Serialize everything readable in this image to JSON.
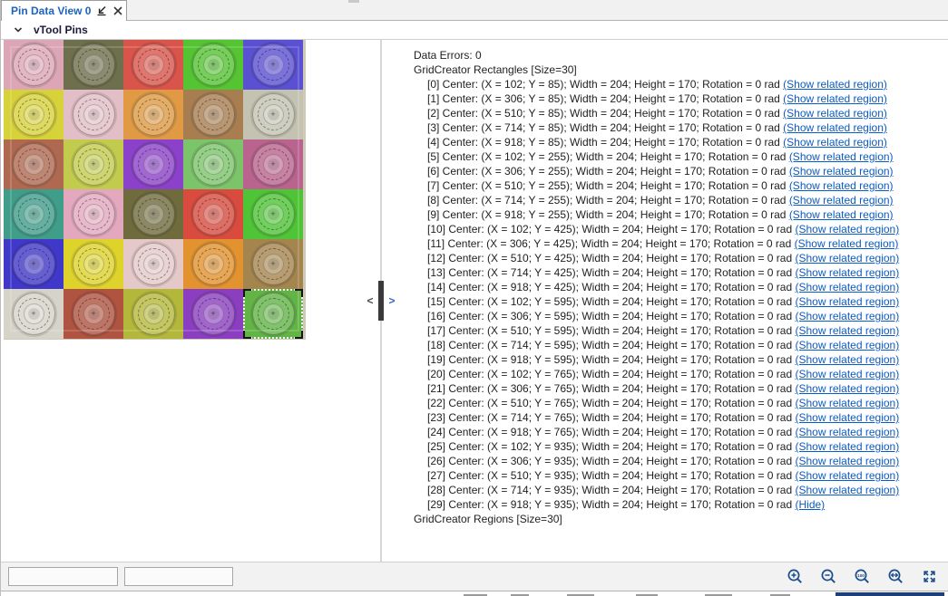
{
  "tab": {
    "title": "Pin Data View 0"
  },
  "header": {
    "title": "vTool Pins"
  },
  "viewer": {
    "cap_mark": "+",
    "selected_index": 29,
    "cell_colors": [
      "#dca6b6",
      "#6e6f4c",
      "#d9544a",
      "#55c433",
      "#5a50d2",
      "#d7d13a",
      "#e2bec6",
      "#df9a43",
      "#a87e50",
      "#c4c3b2",
      "#b06951",
      "#c2cb4e",
      "#8b41c9",
      "#7cc46a",
      "#b9638e",
      "#3f9d8a",
      "#e3a8bd",
      "#6f6b3c",
      "#d84b3e",
      "#4ec436",
      "#4038c8",
      "#ded32a",
      "#e5c9c9",
      "#e2922e",
      "#a5854e",
      "#d6d3c8",
      "#b05340",
      "#b4b83a",
      "#8b3fc0",
      "#62b446"
    ]
  },
  "splitter": {
    "left_glyph": "<",
    "right_glyph": ">"
  },
  "panel": {
    "data_errors": "Data Errors: 0",
    "rectangles_header": "GridCreator Rectangles [Size=30]",
    "regions_header": "GridCreator Regions [Size=30]",
    "entries": [
      {
        "label": "[0] Center: (X = 102; Y = 85); Width = 204; Height = 170; Rotation = 0 rad",
        "link": "Show related region"
      },
      {
        "label": "[1] Center: (X = 306; Y = 85); Width = 204; Height = 170; Rotation = 0 rad",
        "link": "Show related region"
      },
      {
        "label": "[2] Center: (X = 510; Y = 85); Width = 204; Height = 170; Rotation = 0 rad",
        "link": "Show related region"
      },
      {
        "label": "[3] Center: (X = 714; Y = 85); Width = 204; Height = 170; Rotation = 0 rad",
        "link": "Show related region"
      },
      {
        "label": "[4] Center: (X = 918; Y = 85); Width = 204; Height = 170; Rotation = 0 rad",
        "link": "Show related region"
      },
      {
        "label": "[5] Center: (X = 102; Y = 255); Width = 204; Height = 170; Rotation = 0 rad",
        "link": "Show related region"
      },
      {
        "label": "[6] Center: (X = 306; Y = 255); Width = 204; Height = 170; Rotation = 0 rad",
        "link": "Show related region"
      },
      {
        "label": "[7] Center: (X = 510; Y = 255); Width = 204; Height = 170; Rotation = 0 rad",
        "link": "Show related region"
      },
      {
        "label": "[8] Center: (X = 714; Y = 255); Width = 204; Height = 170; Rotation = 0 rad",
        "link": "Show related region"
      },
      {
        "label": "[9] Center: (X = 918; Y = 255); Width = 204; Height = 170; Rotation = 0 rad",
        "link": "Show related region"
      },
      {
        "label": "[10] Center: (X = 102; Y = 425); Width = 204; Height = 170; Rotation = 0 rad",
        "link": "Show related region"
      },
      {
        "label": "[11] Center: (X = 306; Y = 425); Width = 204; Height = 170; Rotation = 0 rad",
        "link": "Show related region"
      },
      {
        "label": "[12] Center: (X = 510; Y = 425); Width = 204; Height = 170; Rotation = 0 rad",
        "link": "Show related region"
      },
      {
        "label": "[13] Center: (X = 714; Y = 425); Width = 204; Height = 170; Rotation = 0 rad",
        "link": "Show related region"
      },
      {
        "label": "[14] Center: (X = 918; Y = 425); Width = 204; Height = 170; Rotation = 0 rad",
        "link": "Show related region"
      },
      {
        "label": "[15] Center: (X = 102; Y = 595); Width = 204; Height = 170; Rotation = 0 rad",
        "link": "Show related region"
      },
      {
        "label": "[16] Center: (X = 306; Y = 595); Width = 204; Height = 170; Rotation = 0 rad",
        "link": "Show related region"
      },
      {
        "label": "[17] Center: (X = 510; Y = 595); Width = 204; Height = 170; Rotation = 0 rad",
        "link": "Show related region"
      },
      {
        "label": "[18] Center: (X = 714; Y = 595); Width = 204; Height = 170; Rotation = 0 rad",
        "link": "Show related region"
      },
      {
        "label": "[19] Center: (X = 918; Y = 595); Width = 204; Height = 170; Rotation = 0 rad",
        "link": "Show related region"
      },
      {
        "label": "[20] Center: (X = 102; Y = 765); Width = 204; Height = 170; Rotation = 0 rad",
        "link": "Show related region"
      },
      {
        "label": "[21] Center: (X = 306; Y = 765); Width = 204; Height = 170; Rotation = 0 rad",
        "link": "Show related region"
      },
      {
        "label": "[22] Center: (X = 510; Y = 765); Width = 204; Height = 170; Rotation = 0 rad",
        "link": "Show related region"
      },
      {
        "label": "[23] Center: (X = 714; Y = 765); Width = 204; Height = 170; Rotation = 0 rad",
        "link": "Show related region"
      },
      {
        "label": "[24] Center: (X = 918; Y = 765); Width = 204; Height = 170; Rotation = 0 rad",
        "link": "Show related region"
      },
      {
        "label": "[25] Center: (X = 102; Y = 935); Width = 204; Height = 170; Rotation = 0 rad",
        "link": "Show related region"
      },
      {
        "label": "[26] Center: (X = 306; Y = 935); Width = 204; Height = 170; Rotation = 0 rad",
        "link": "Show related region"
      },
      {
        "label": "[27] Center: (X = 510; Y = 935); Width = 204; Height = 170; Rotation = 0 rad",
        "link": "Show related region"
      },
      {
        "label": "[28] Center: (X = 714; Y = 935); Width = 204; Height = 170; Rotation = 0 rad",
        "link": "Show related region"
      },
      {
        "label": "[29] Center: (X = 918; Y = 935); Width = 204; Height = 170; Rotation = 0 rad",
        "link": "Hide"
      }
    ]
  },
  "toolbar": {
    "status_value_1": "",
    "status_value_2": "",
    "zoom_100_label": "100",
    "icon_color": "#1b4d8e"
  }
}
